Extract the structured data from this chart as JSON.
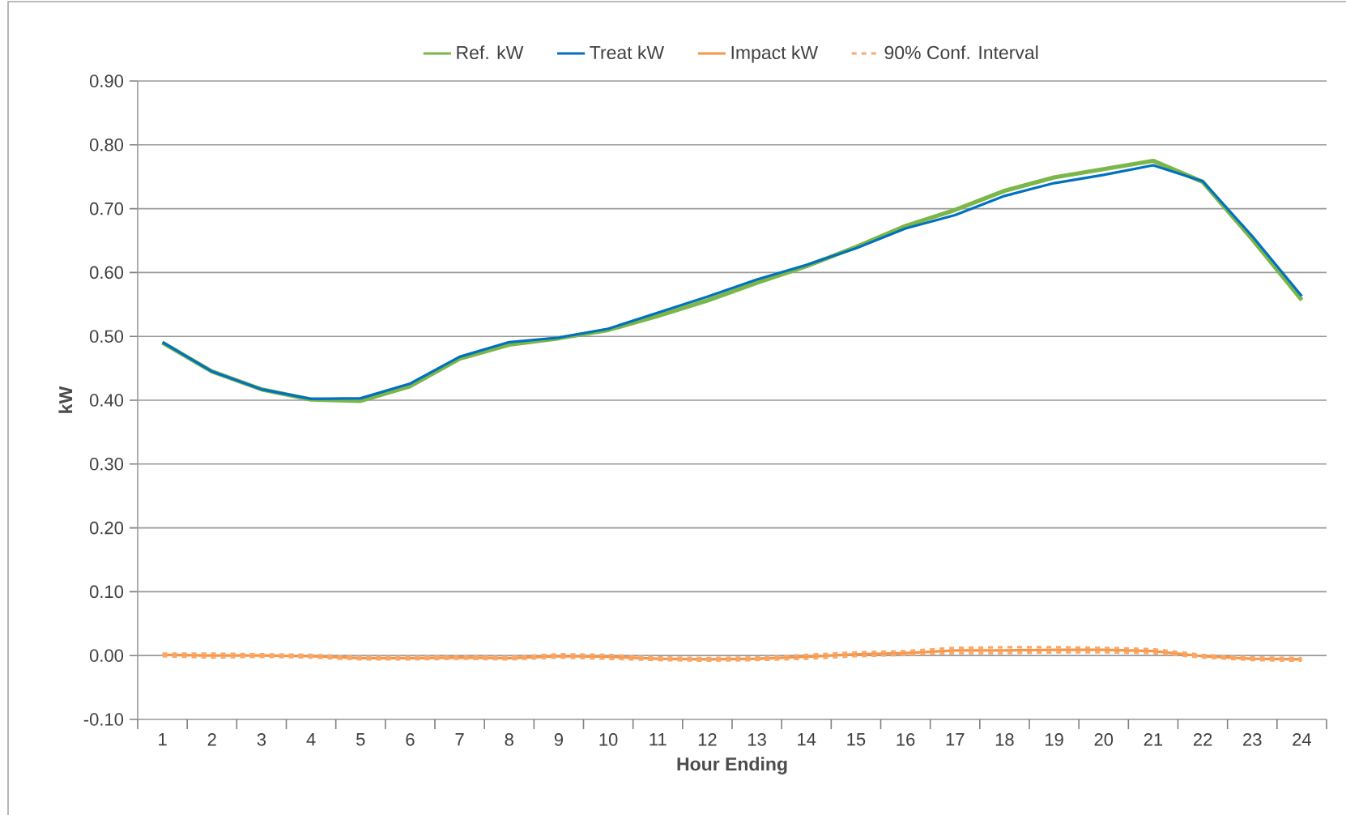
{
  "chart_data": {
    "type": "line",
    "xlabel": "Hour Ending",
    "ylabel": "kW",
    "categories": [
      "1",
      "2",
      "3",
      "4",
      "5",
      "6",
      "7",
      "8",
      "9",
      "10",
      "11",
      "12",
      "13",
      "14",
      "15",
      "16",
      "17",
      "18",
      "19",
      "20",
      "21",
      "22",
      "23",
      "24"
    ],
    "series": [
      {
        "name": "Ref. kW",
        "color": "#7ab648",
        "values": [
          0.49,
          0.445,
          0.417,
          0.401,
          0.399,
          0.422,
          0.465,
          0.487,
          0.497,
          0.51,
          0.532,
          0.556,
          0.584,
          0.61,
          0.64,
          0.673,
          0.698,
          0.728,
          0.749,
          0.762,
          0.775,
          0.742,
          0.652,
          0.557
        ]
      },
      {
        "name": "Treat kW",
        "color": "#0070c0",
        "values": [
          0.491,
          0.445,
          0.417,
          0.402,
          0.403,
          0.426,
          0.468,
          0.491,
          0.498,
          0.512,
          0.537,
          0.562,
          0.589,
          0.612,
          0.638,
          0.669,
          0.69,
          0.72,
          0.74,
          0.753,
          0.768,
          0.743,
          0.657,
          0.563
        ]
      },
      {
        "name": "Impact kW",
        "color": "#f79646",
        "values": [
          0.001,
          0.0,
          0.0,
          -0.001,
          -0.004,
          -0.004,
          -0.003,
          -0.004,
          -0.001,
          -0.002,
          -0.005,
          -0.006,
          -0.005,
          -0.002,
          0.002,
          0.004,
          0.008,
          0.008,
          0.009,
          0.009,
          0.007,
          -0.001,
          -0.005,
          -0.006
        ]
      },
      {
        "name": "90% Conf. Interval",
        "color": "#f9a86a",
        "line_style": "dashed",
        "values": [
          0.003,
          0.003,
          0.002,
          0.001,
          -0.002,
          -0.002,
          -0.001,
          -0.002,
          0.002,
          0.001,
          -0.003,
          -0.004,
          -0.003,
          0.001,
          0.005,
          0.007,
          0.012,
          0.013,
          0.013,
          0.012,
          0.01,
          0.001,
          -0.003,
          -0.004
        ]
      },
      {
        "color": "#f9a86a",
        "line_style": "dashed",
        "values": [
          -0.001,
          -0.003,
          -0.002,
          -0.003,
          -0.006,
          -0.006,
          -0.005,
          -0.006,
          -0.003,
          -0.005,
          -0.007,
          -0.008,
          -0.007,
          -0.005,
          -0.001,
          0.001,
          0.004,
          0.004,
          0.005,
          0.005,
          0.004,
          -0.003,
          -0.007,
          -0.008
        ]
      }
    ],
    "ylim": [
      -0.1,
      0.9
    ],
    "yticks": [
      {
        "value": -0.1,
        "label": "-0.10"
      },
      {
        "value": 0,
        "label": "0.00"
      },
      {
        "value": 0.1,
        "label": "0.10"
      },
      {
        "value": 0.2,
        "label": "0.20"
      },
      {
        "value": 0.3,
        "label": "0.30"
      },
      {
        "value": 0.4,
        "label": "0.40"
      },
      {
        "value": 0.5,
        "label": "0.50"
      },
      {
        "value": 0.6,
        "label": "0.60"
      },
      {
        "value": 0.7,
        "label": "0.70"
      },
      {
        "value": 0.8,
        "label": "0.80"
      },
      {
        "value": 0.9,
        "label": "0.90"
      }
    ],
    "grid": "y",
    "legend": "top",
    "line_style": "solid",
    "marker": "none"
  }
}
